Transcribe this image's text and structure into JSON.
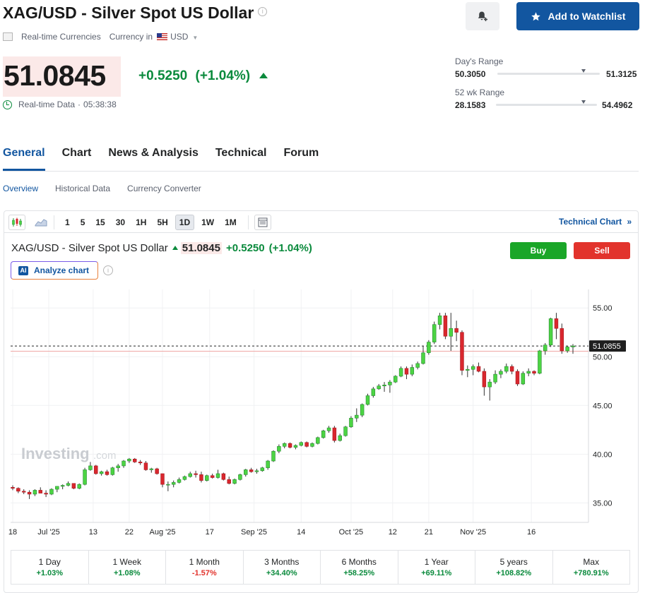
{
  "header": {
    "title": "XAG/USD - Silver Spot US Dollar",
    "watchlist_label": "Add to Watchlist",
    "market_type": "Real-time Currencies",
    "currency_label": "Currency in",
    "currency_value": "USD"
  },
  "quote": {
    "price": "51.0845",
    "change": "+0.5250",
    "change_pct": "(+1.04%)",
    "data_label": "Real-time Data",
    "separator": "·",
    "time": "05:38:38"
  },
  "ranges": {
    "day_label": "Day's Range",
    "day_low": "50.3050",
    "day_high": "51.3125",
    "day_position": 0.84,
    "wk52_label": "52 wk Range",
    "wk52_low": "28.1583",
    "wk52_high": "54.4962",
    "wk52_position": 0.87
  },
  "tabs": [
    "General",
    "Chart",
    "News & Analysis",
    "Technical",
    "Forum"
  ],
  "active_tab": "General",
  "subtabs": [
    "Overview",
    "Historical Data",
    "Currency Converter"
  ],
  "active_subtab": "Overview",
  "toolbar": {
    "intervals": [
      "1",
      "5",
      "15",
      "30",
      "1H",
      "5H",
      "1D",
      "1W",
      "1M"
    ],
    "active_interval": "1D",
    "technical_link": "Technical Chart",
    "technical_link_arrow": "»"
  },
  "chart_header": {
    "title": "XAG/USD - Silver Spot US Dollar",
    "price": "51.0845",
    "change": "+0.5250",
    "change_pct": "(+1.04%)",
    "buy_label": "Buy",
    "sell_label": "Sell",
    "analyze_label": "Analyze chart",
    "ai_badge": "AI",
    "watermark": "Investing",
    "watermark_suffix": ".com"
  },
  "colors": {
    "accent": "#1256a0",
    "up": "#0a8a3c",
    "down": "#e2332c",
    "candle_up": "#4cd443",
    "candle_down": "#d9272e"
  },
  "chart_data": {
    "type": "candlestick",
    "current_price_label": "51.0855",
    "y_ticks": [
      "55.00",
      "50.00",
      "45.00",
      "40.00",
      "35.00"
    ],
    "y_tick_values": [
      55,
      50,
      45,
      40,
      35
    ],
    "ylim": [
      33.0,
      56.9
    ],
    "x_ticks": [
      "18",
      "Jul '25",
      "13",
      "22",
      "Aug '25",
      "17",
      "Sep '25",
      "14",
      "Oct '25",
      "12",
      "21",
      "Nov '25",
      "16"
    ],
    "x_tick_index": [
      0,
      6.5,
      14.5,
      21,
      27,
      35.5,
      43.5,
      52,
      61,
      68.5,
      75,
      83,
      93.5
    ],
    "reference_line": 50.56,
    "candles": [
      [
        36.6,
        36.8,
        36.3,
        36.5
      ],
      [
        36.5,
        36.6,
        36.0,
        36.2
      ],
      [
        36.2,
        36.4,
        35.9,
        36.1
      ],
      [
        36.1,
        36.3,
        35.4,
        35.9
      ],
      [
        35.9,
        36.4,
        35.7,
        36.3
      ],
      [
        36.3,
        36.6,
        36.0,
        36.0
      ],
      [
        36.0,
        36.3,
        35.6,
        35.9
      ],
      [
        35.9,
        36.5,
        35.8,
        36.4
      ],
      [
        36.4,
        36.7,
        36.1,
        36.7
      ],
      [
        36.7,
        36.9,
        36.4,
        36.8
      ],
      [
        36.8,
        37.2,
        36.7,
        37.0
      ],
      [
        37.0,
        37.0,
        36.4,
        36.5
      ],
      [
        36.5,
        37.0,
        36.4,
        36.9
      ],
      [
        36.9,
        38.6,
        36.8,
        38.4
      ],
      [
        38.4,
        39.2,
        38.3,
        38.8
      ],
      [
        38.8,
        38.9,
        37.9,
        38.0
      ],
      [
        38.0,
        38.3,
        37.8,
        38.2
      ],
      [
        38.2,
        38.4,
        37.8,
        37.9
      ],
      [
        37.9,
        38.7,
        37.8,
        38.6
      ],
      [
        38.6,
        39.0,
        38.2,
        38.8
      ],
      [
        38.8,
        39.4,
        38.6,
        39.3
      ],
      [
        39.3,
        39.6,
        39.1,
        39.5
      ],
      [
        39.5,
        39.6,
        39.1,
        39.2
      ],
      [
        39.2,
        39.4,
        38.9,
        39.1
      ],
      [
        39.1,
        39.3,
        38.3,
        38.4
      ],
      [
        38.4,
        38.6,
        38.1,
        38.5
      ],
      [
        38.5,
        38.6,
        37.9,
        38.0
      ],
      [
        38.0,
        38.0,
        36.6,
        36.9
      ],
      [
        36.9,
        37.2,
        36.2,
        36.9
      ],
      [
        36.9,
        37.3,
        36.6,
        37.1
      ],
      [
        37.1,
        37.6,
        37.0,
        37.4
      ],
      [
        37.4,
        37.8,
        37.3,
        37.7
      ],
      [
        37.7,
        38.2,
        37.6,
        38.0
      ],
      [
        38.0,
        38.3,
        37.6,
        37.9
      ],
      [
        37.9,
        38.2,
        37.1,
        37.3
      ],
      [
        37.3,
        37.9,
        37.2,
        37.8
      ],
      [
        37.8,
        38.0,
        37.5,
        37.6
      ],
      [
        37.6,
        38.4,
        37.5,
        38.0
      ],
      [
        38.0,
        38.1,
        37.3,
        37.4
      ],
      [
        37.4,
        37.7,
        36.9,
        37.0
      ],
      [
        37.0,
        37.5,
        36.9,
        37.4
      ],
      [
        37.4,
        38.0,
        37.3,
        37.9
      ],
      [
        37.9,
        38.5,
        37.7,
        38.4
      ],
      [
        38.4,
        38.6,
        38.1,
        38.2
      ],
      [
        38.2,
        38.5,
        38.0,
        38.3
      ],
      [
        38.3,
        38.7,
        38.2,
        38.6
      ],
      [
        38.6,
        39.4,
        38.4,
        39.3
      ],
      [
        39.3,
        40.4,
        39.2,
        40.3
      ],
      [
        40.3,
        41.0,
        40.1,
        40.8
      ],
      [
        40.8,
        41.2,
        40.6,
        41.1
      ],
      [
        41.1,
        41.2,
        40.6,
        40.7
      ],
      [
        40.7,
        41.0,
        40.5,
        40.9
      ],
      [
        40.9,
        41.3,
        40.8,
        41.2
      ],
      [
        41.2,
        41.3,
        40.7,
        40.8
      ],
      [
        40.8,
        41.2,
        40.7,
        41.1
      ],
      [
        41.1,
        41.8,
        41.0,
        41.7
      ],
      [
        41.7,
        42.5,
        41.6,
        42.4
      ],
      [
        42.4,
        42.9,
        42.2,
        42.7
      ],
      [
        42.7,
        42.9,
        41.2,
        41.4
      ],
      [
        41.4,
        42.1,
        41.3,
        41.9
      ],
      [
        41.9,
        42.9,
        41.8,
        42.8
      ],
      [
        42.8,
        43.9,
        42.7,
        43.7
      ],
      [
        43.7,
        44.7,
        43.3,
        44.0
      ],
      [
        44.0,
        45.2,
        43.8,
        45.1
      ],
      [
        45.1,
        46.2,
        45.0,
        46.0
      ],
      [
        46.0,
        46.9,
        45.8,
        46.7
      ],
      [
        46.7,
        47.2,
        46.6,
        47.0
      ],
      [
        47.0,
        47.4,
        46.4,
        47.1
      ],
      [
        47.1,
        47.6,
        46.3,
        47.4
      ],
      [
        47.4,
        48.1,
        47.3,
        48.0
      ],
      [
        48.0,
        49.0,
        47.9,
        48.8
      ],
      [
        48.8,
        49.0,
        47.7,
        48.2
      ],
      [
        48.2,
        49.2,
        48.0,
        48.9
      ],
      [
        48.9,
        49.5,
        48.7,
        49.3
      ],
      [
        49.3,
        51.1,
        49.2,
        50.4
      ],
      [
        50.4,
        51.7,
        50.2,
        51.5
      ],
      [
        51.5,
        53.6,
        51.3,
        53.3
      ],
      [
        53.3,
        54.5,
        52.8,
        54.2
      ],
      [
        54.2,
        54.5,
        51.8,
        52.1
      ],
      [
        52.1,
        54.5,
        50.6,
        52.9
      ],
      [
        52.9,
        53.7,
        51.6,
        52.5
      ],
      [
        52.5,
        52.7,
        48.1,
        48.6
      ],
      [
        48.6,
        49.1,
        47.9,
        48.7
      ],
      [
        48.7,
        49.2,
        48.1,
        49.0
      ],
      [
        49.0,
        49.4,
        48.4,
        48.5
      ],
      [
        48.5,
        48.8,
        46.0,
        46.9
      ],
      [
        46.9,
        47.7,
        45.5,
        47.4
      ],
      [
        47.4,
        48.6,
        47.2,
        48.2
      ],
      [
        48.2,
        48.7,
        47.8,
        48.5
      ],
      [
        48.5,
        49.3,
        48.3,
        49.0
      ],
      [
        49.0,
        49.2,
        48.2,
        48.5
      ],
      [
        48.5,
        48.7,
        47.0,
        47.2
      ],
      [
        47.2,
        48.5,
        47.1,
        48.3
      ],
      [
        48.3,
        48.8,
        48.0,
        48.5
      ],
      [
        48.5,
        48.6,
        48.1,
        48.3
      ],
      [
        48.3,
        50.7,
        48.2,
        50.6
      ],
      [
        50.6,
        51.4,
        50.2,
        51.2
      ],
      [
        51.2,
        54.0,
        51.0,
        53.9
      ],
      [
        53.9,
        54.5,
        51.8,
        52.9
      ],
      [
        52.9,
        53.4,
        50.3,
        50.6
      ],
      [
        50.6,
        51.1,
        50.4,
        51.0
      ],
      [
        51.0,
        51.3,
        50.3,
        51.1
      ]
    ]
  },
  "performance": [
    {
      "label": "1 Day",
      "value": "+1.03%",
      "dir": "pos"
    },
    {
      "label": "1 Week",
      "value": "+1.08%",
      "dir": "pos"
    },
    {
      "label": "1 Month",
      "value": "-1.57%",
      "dir": "neg"
    },
    {
      "label": "3 Months",
      "value": "+34.40%",
      "dir": "pos"
    },
    {
      "label": "6 Months",
      "value": "+58.25%",
      "dir": "pos"
    },
    {
      "label": "1 Year",
      "value": "+69.11%",
      "dir": "pos"
    },
    {
      "label": "5 years",
      "value": "+108.82%",
      "dir": "pos"
    },
    {
      "label": "Max",
      "value": "+780.91%",
      "dir": "pos"
    }
  ]
}
